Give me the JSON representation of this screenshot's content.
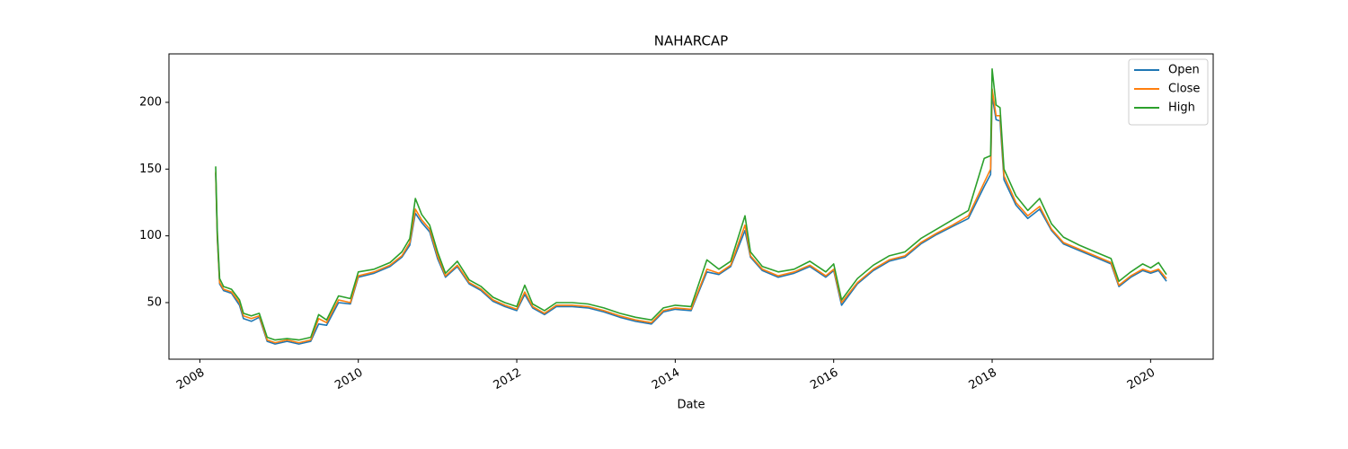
{
  "chart_data": {
    "type": "line",
    "title": "NAHARCAP",
    "xlabel": "Date",
    "x": [
      2008.2,
      2008.22,
      2008.25,
      2008.3,
      2008.4,
      2008.5,
      2008.55,
      2008.65,
      2008.75,
      2008.85,
      2008.95,
      2009.1,
      2009.25,
      2009.4,
      2009.5,
      2009.6,
      2009.75,
      2009.9,
      2010.0,
      2010.2,
      2010.4,
      2010.55,
      2010.65,
      2010.72,
      2010.8,
      2010.9,
      2011.0,
      2011.1,
      2011.25,
      2011.4,
      2011.55,
      2011.7,
      2011.85,
      2012.0,
      2012.1,
      2012.2,
      2012.35,
      2012.5,
      2012.7,
      2012.9,
      2013.1,
      2013.3,
      2013.5,
      2013.7,
      2013.85,
      2014.0,
      2014.2,
      2014.4,
      2014.55,
      2014.7,
      2014.88,
      2014.95,
      2015.1,
      2015.3,
      2015.5,
      2015.7,
      2015.9,
      2016.0,
      2016.1,
      2016.3,
      2016.5,
      2016.7,
      2016.9,
      2017.1,
      2017.3,
      2017.5,
      2017.7,
      2017.9,
      2017.98,
      2018.0,
      2018.05,
      2018.1,
      2018.15,
      2018.3,
      2018.45,
      2018.6,
      2018.75,
      2018.9,
      2019.1,
      2019.3,
      2019.5,
      2019.6,
      2019.75,
      2019.9,
      2020.0,
      2020.1,
      2020.2
    ],
    "series": [
      {
        "name": "Open",
        "color": "#1f77b4",
        "values": [
          147,
          98,
          64,
          59,
          57,
          48,
          38,
          36,
          39,
          21,
          19,
          21,
          19,
          21,
          34,
          33,
          50,
          49,
          69,
          72,
          77,
          84,
          93,
          117,
          110,
          103,
          83,
          69,
          77,
          64,
          59,
          51,
          47,
          44,
          56,
          46,
          41,
          47,
          47,
          46,
          43,
          39,
          36,
          34,
          43,
          45,
          44,
          73,
          71,
          77,
          104,
          84,
          74,
          69,
          72,
          77,
          69,
          74,
          48,
          64,
          74,
          81,
          84,
          94,
          101,
          107,
          113,
          137,
          146,
          205,
          187,
          186,
          142,
          123,
          113,
          120,
          104,
          94,
          89,
          84,
          79,
          62,
          69,
          74,
          72,
          74,
          66
        ]
      },
      {
        "name": "Close",
        "color": "#ff7f0e",
        "values": [
          148,
          100,
          65,
          60,
          58,
          50,
          40,
          38,
          40,
          22,
          20,
          22,
          20,
          22,
          38,
          35,
          52,
          50,
          70,
          73,
          78,
          85,
          95,
          120,
          112,
          105,
          85,
          70,
          78,
          65,
          60,
          52,
          48,
          45,
          58,
          47,
          42,
          48,
          48,
          47,
          44,
          40,
          37,
          35,
          44,
          46,
          45,
          75,
          72,
          78,
          108,
          85,
          75,
          70,
          73,
          78,
          70,
          75,
          50,
          65,
          75,
          82,
          85,
          95,
          102,
          108,
          115,
          140,
          150,
          210,
          190,
          190,
          145,
          125,
          115,
          122,
          105,
          95,
          90,
          85,
          80,
          63,
          70,
          75,
          73,
          75,
          68
        ]
      },
      {
        "name": "High",
        "color": "#2ca02c",
        "values": [
          152,
          104,
          68,
          62,
          60,
          52,
          42,
          40,
          42,
          24,
          22,
          23,
          22,
          24,
          41,
          37,
          55,
          53,
          73,
          75,
          80,
          88,
          98,
          128,
          116,
          108,
          88,
          72,
          81,
          67,
          62,
          54,
          50,
          47,
          63,
          49,
          44,
          50,
          50,
          49,
          46,
          42,
          39,
          37,
          46,
          48,
          47,
          82,
          75,
          81,
          115,
          88,
          77,
          73,
          75,
          81,
          73,
          79,
          52,
          68,
          78,
          85,
          88,
          98,
          105,
          112,
          119,
          158,
          160,
          225,
          198,
          196,
          150,
          130,
          119,
          128,
          109,
          99,
          93,
          88,
          83,
          66,
          73,
          79,
          76,
          80,
          71
        ]
      }
    ],
    "xlim": [
      2007.61,
      2020.79
    ],
    "xticks": [
      2008,
      2010,
      2012,
      2014,
      2016,
      2018,
      2020
    ],
    "ylim": [
      7.6,
      236.3
    ],
    "yticks": [
      50,
      100,
      150,
      200
    ],
    "legend": "upper right"
  }
}
